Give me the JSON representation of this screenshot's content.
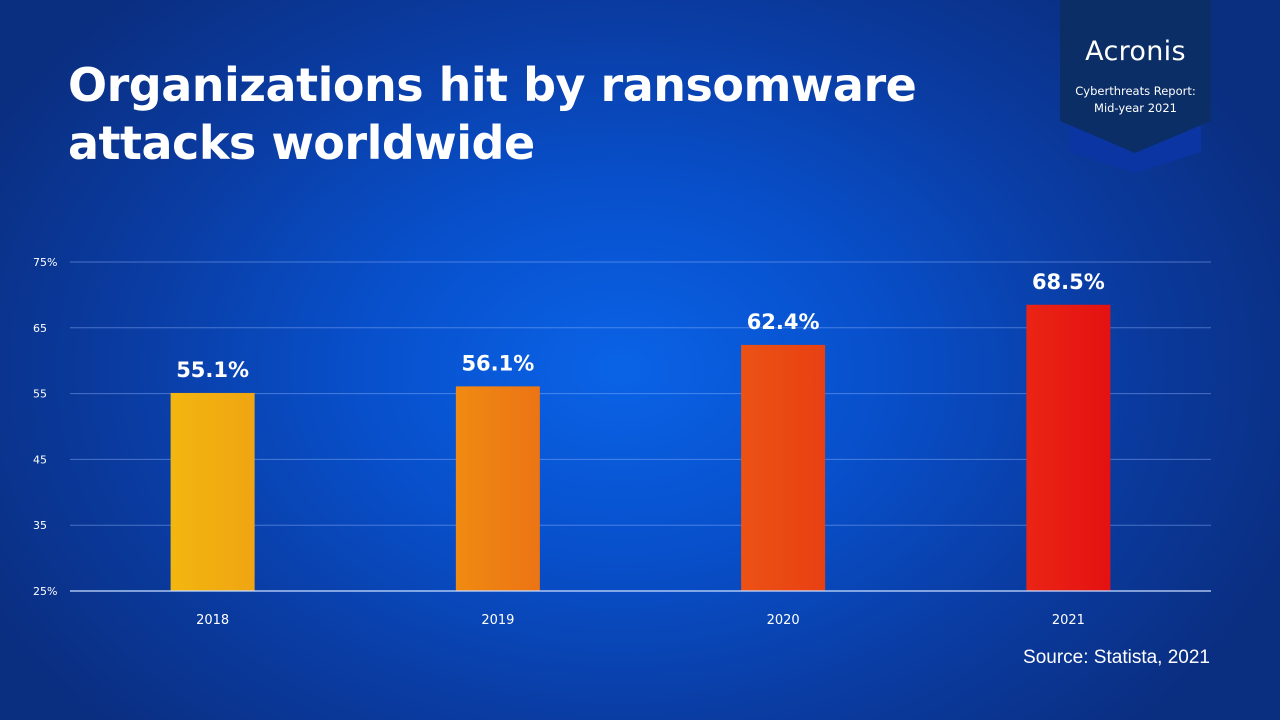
{
  "title_lines": [
    "Organizations hit by ransomware",
    "attacks worldwide"
  ],
  "badge": {
    "brand": "Acronis",
    "line1": "Cyberthreats Report:",
    "line2": "Mid-year 2021",
    "color": "#0b2e66",
    "shadow_color": "#0b35a3"
  },
  "source": "Source: Statista, 2021",
  "chart_data": {
    "type": "bar",
    "title": "Organizations hit by ransomware attacks worldwide",
    "categories": [
      "2018",
      "2019",
      "2020",
      "2021"
    ],
    "values": [
      55.1,
      56.1,
      62.4,
      68.5
    ],
    "data_labels": [
      "55.1%",
      "56.1%",
      "62.4%",
      "68.5%"
    ],
    "ylim": [
      25,
      75
    ],
    "yticks": [
      25,
      35,
      45,
      55,
      65,
      75
    ],
    "ytick_labels": [
      "25%",
      "35",
      "45",
      "55",
      "65",
      "75%"
    ],
    "xlabel": "",
    "ylabel": "",
    "grid": true,
    "legend": "none",
    "bar_colors": [
      [
        "#f3b60f",
        "#f0a512"
      ],
      [
        "#f08a12",
        "#ec7414"
      ],
      [
        "#ec5214",
        "#e84012"
      ],
      [
        "#ea2414",
        "#e41212"
      ]
    ]
  }
}
